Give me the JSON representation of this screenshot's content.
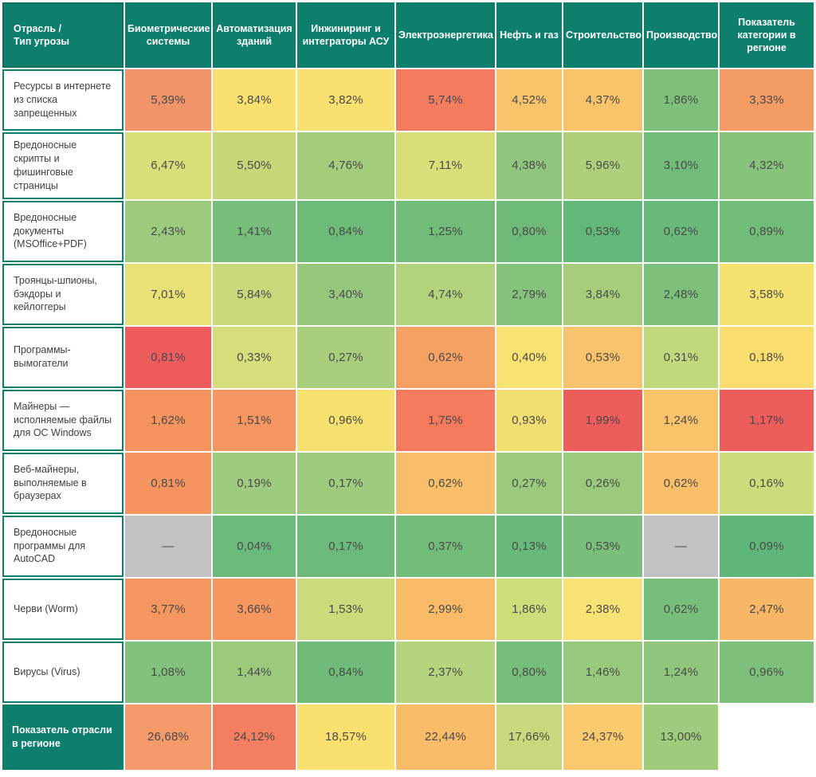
{
  "theme": {
    "header_bg": "#0e7e6d",
    "header_text": "#ffffff",
    "label_text": "#3f3f3f",
    "value_text": "#4a4a4a",
    "grid_gap": "#ffffff",
    "missing_bg": "#c2c2c2",
    "scale_low_color": "#5fb67a",
    "scale_mid_color": "#f9e06f",
    "scale_high_color": "#ec5d5c"
  },
  "chart_data": {
    "type": "heatmap",
    "corner_label": "Отрасль /\nТип угрозы",
    "columns": [
      "Биометрические системы",
      "Автоматизация зданий",
      "Инжиниринг и интеграторы АСУ",
      "Электроэнергетика",
      "Нефть и газ",
      "Строительство",
      "Производство",
      "Показатель категории в регионе"
    ],
    "rows": [
      "Ресурсы в интернете из списка запрещенных",
      "Вредоносные скрипты и фишинговые страницы",
      "Вредоносные документы (MSOffice+PDF)",
      "Троянцы-шпионы, бэкдоры и кейлоггеры",
      "Программы-вымогатели",
      "Майнеры — исполняемые файлы для ОС Windows",
      "Веб-майнеры, выполняемые в браузерах",
      "Вредоносные программы для AutoCAD",
      "Черви (Worm)",
      "Вирусы (Virus)"
    ],
    "values": [
      [
        5.39,
        3.84,
        3.82,
        5.74,
        4.52,
        4.37,
        1.86,
        3.33
      ],
      [
        6.47,
        5.5,
        4.76,
        7.11,
        4.38,
        5.96,
        3.1,
        4.32
      ],
      [
        2.43,
        1.41,
        0.84,
        1.25,
        0.8,
        0.53,
        0.62,
        0.89
      ],
      [
        7.01,
        5.84,
        3.4,
        4.74,
        2.79,
        3.84,
        2.48,
        3.58
      ],
      [
        0.81,
        0.33,
        0.27,
        0.62,
        0.4,
        0.53,
        0.31,
        0.18
      ],
      [
        1.62,
        1.51,
        0.96,
        1.75,
        0.93,
        1.99,
        1.24,
        1.17
      ],
      [
        0.81,
        0.19,
        0.17,
        0.62,
        0.27,
        0.26,
        0.62,
        0.16
      ],
      [
        null,
        0.04,
        0.17,
        0.37,
        0.13,
        0.53,
        null,
        0.09
      ],
      [
        3.77,
        3.66,
        1.53,
        2.99,
        1.86,
        2.38,
        0.62,
        2.47
      ],
      [
        1.08,
        1.44,
        0.84,
        2.37,
        0.8,
        1.46,
        1.24,
        0.96
      ]
    ],
    "display": [
      [
        "5,39%",
        "3,84%",
        "3,82%",
        "5,74%",
        "4,52%",
        "4,37%",
        "1,86%",
        "3,33%"
      ],
      [
        "6,47%",
        "5,50%",
        "4,76%",
        "7,11%",
        "4,38%",
        "5,96%",
        "3,10%",
        "4,32%"
      ],
      [
        "2,43%",
        "1,41%",
        "0,84%",
        "1,25%",
        "0,80%",
        "0,53%",
        "0,62%",
        "0,89%"
      ],
      [
        "7,01%",
        "5,84%",
        "3,40%",
        "4,74%",
        "2,79%",
        "3,84%",
        "2,48%",
        "3,58%"
      ],
      [
        "0,81%",
        "0,33%",
        "0,27%",
        "0,62%",
        "0,40%",
        "0,53%",
        "0,31%",
        "0,18%"
      ],
      [
        "1,62%",
        "1,51%",
        "0,96%",
        "1,75%",
        "0,93%",
        "1,99%",
        "1,24%",
        "1,17%"
      ],
      [
        "0,81%",
        "0,19%",
        "0,17%",
        "0,62%",
        "0,27%",
        "0,26%",
        "0,62%",
        "0,16%"
      ],
      [
        "—",
        "0,04%",
        "0,17%",
        "0,37%",
        "0,13%",
        "0,53%",
        "—",
        "0,09%"
      ],
      [
        "3,77%",
        "3,66%",
        "1,53%",
        "2,99%",
        "1,86%",
        "2,38%",
        "0,62%",
        "2,47%"
      ],
      [
        "1,08%",
        "1,44%",
        "0,84%",
        "2,37%",
        "0,80%",
        "1,46%",
        "1,24%",
        "0,96%"
      ]
    ],
    "cell_colors": [
      [
        "#f2946b",
        "#f9e06f",
        "#f9e06f",
        "#f37c5f",
        "#f9c36c",
        "#f9c36c",
        "#7cc07c",
        "#f49c66"
      ],
      [
        "#d9df78",
        "#c4d87a",
        "#a3cc7b",
        "#d9df78",
        "#90c67c",
        "#aed07b",
        "#72bc7a",
        "#87c37b"
      ],
      [
        "#9ccb7d",
        "#77be7b",
        "#6dba79",
        "#72bc7a",
        "#6dba79",
        "#62b779",
        "#68b97a",
        "#72bc7a"
      ],
      [
        "#e9e175",
        "#c7d97a",
        "#95c87d",
        "#b3d27c",
        "#85c27b",
        "#a5cd7c",
        "#7cc07b",
        "#f6e26f"
      ],
      [
        "#ee5c5e",
        "#d5de7a",
        "#a8ce7b",
        "#f5a164",
        "#f8e272",
        "#f9c26c",
        "#c2d87d",
        "#f9dd6f"
      ],
      [
        "#f5935f",
        "#f59560",
        "#f6e06e",
        "#f37a5d",
        "#f2df72",
        "#ec5d5c",
        "#f9c36c",
        "#ec5d5c"
      ],
      [
        "#f5945f",
        "#9fcb7e",
        "#9fcb7e",
        "#f9be69",
        "#9cca7d",
        "#9cca7d",
        "#f9be69",
        "#ccdb7b"
      ],
      [
        "#c2c2c2",
        "#6cba7b",
        "#6cba7b",
        "#72bc7a",
        "#68b97a",
        "#79bf7b",
        "#c2c2c2",
        "#5fb67a"
      ],
      [
        "#f5955f",
        "#f5975f",
        "#cbdb7b",
        "#f8ba67",
        "#cedc7a",
        "#f7e273",
        "#77be7b",
        "#f8b766"
      ],
      [
        "#82c27c",
        "#9bca7d",
        "#70bb79",
        "#b6d37d",
        "#77be7a",
        "#98c97c",
        "#90c67c",
        "#7cc07b"
      ]
    ],
    "footer_row_label": "Показатель отрасли в регионе",
    "footer_values": [
      26.68,
      24.12,
      18.57,
      22.44,
      17.66,
      24.37,
      13.0,
      null
    ],
    "footer_display": [
      "26,68%",
      "24,12%",
      "18,57%",
      "22,44%",
      "17,66%",
      "24,37%",
      "13,00%",
      ""
    ],
    "footer_colors": [
      "#f49a6a",
      "#f37e62",
      "#fae16f",
      "#f8bb68",
      "#c6d97c",
      "#f9c96e",
      "#9fcb7c",
      "#ffffff"
    ],
    "missing_marker": "—",
    "legend_position": "none",
    "grid": "2px white gaps between cells"
  }
}
